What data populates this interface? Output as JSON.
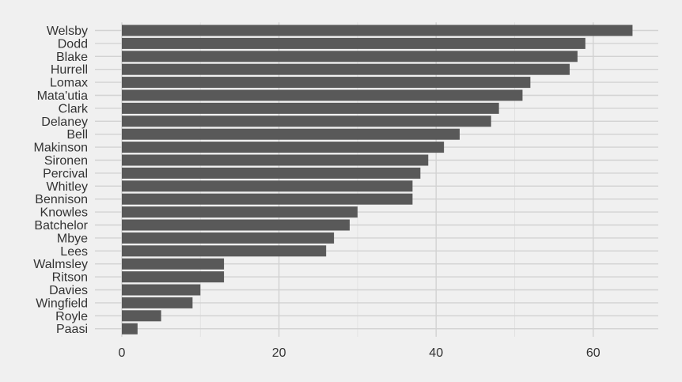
{
  "chart_data": {
    "type": "bar",
    "orientation": "horizontal",
    "title": "",
    "xlabel": "",
    "ylabel": "",
    "categories": [
      "Welsby",
      "Dodd",
      "Blake",
      "Hurrell",
      "Lomax",
      "Mata'utia",
      "Clark",
      "Delaney",
      "Bell",
      "Makinson",
      "Sironen",
      "Percival",
      "Whitley",
      "Bennison",
      "Knowles",
      "Batchelor",
      "Mbye",
      "Lees",
      "Walmsley",
      "Ritson",
      "Davies",
      "Wingfield",
      "Royle",
      "Paasi"
    ],
    "values": [
      65,
      59,
      58,
      57,
      52,
      51,
      48,
      47,
      43,
      41,
      39,
      38,
      37,
      37,
      30,
      29,
      27,
      26,
      13,
      13,
      10,
      9,
      5,
      2
    ],
    "xlim": [
      0,
      68
    ],
    "xticks": [
      0,
      20,
      40,
      60
    ],
    "grid": true,
    "legend": "none",
    "colors": {
      "background": "#F0F0F0",
      "bar": "#595959",
      "grid_major": "#D2D2D2",
      "grid_minor": "#E2E2E2",
      "text": "#333333"
    }
  }
}
